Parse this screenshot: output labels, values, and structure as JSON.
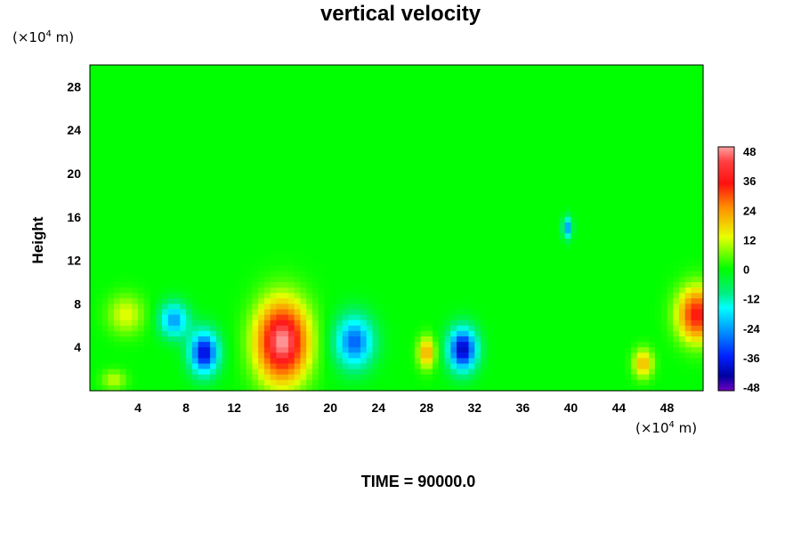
{
  "chart_data": {
    "type": "heatmap",
    "title": "vertical velocity",
    "ylabel": "Height",
    "xunit": {
      "prefix": "(×10",
      "exp": "4",
      "suffix": " m)"
    },
    "yunit": {
      "prefix": "(×10",
      "exp": "4",
      "suffix": " m)"
    },
    "xlim": [
      0,
      51
    ],
    "ylim": [
      0,
      30
    ],
    "xticks": [
      4,
      8,
      12,
      16,
      20,
      24,
      28,
      32,
      36,
      40,
      44,
      48
    ],
    "yticks": [
      4,
      8,
      12,
      16,
      20,
      24,
      28
    ],
    "colorbar": {
      "range": [
        -48,
        48
      ],
      "ticks": [
        48,
        36,
        24,
        12,
        0,
        -12,
        -24,
        -36,
        -48
      ]
    },
    "features": [
      {
        "x": 16,
        "y": 4.5,
        "value": 48,
        "sx": 2.1,
        "sy": 3.6
      },
      {
        "x": 50.5,
        "y": 7,
        "value": 36,
        "sx": 1.6,
        "sy": 2.4
      },
      {
        "x": 9.5,
        "y": 3.5,
        "value": -36,
        "sx": 1.2,
        "sy": 2.0
      },
      {
        "x": 7,
        "y": 6.5,
        "value": -24,
        "sx": 1.2,
        "sy": 1.6
      },
      {
        "x": 22,
        "y": 4.5,
        "value": -28,
        "sx": 1.6,
        "sy": 2.4
      },
      {
        "x": 31,
        "y": 3.8,
        "value": -38,
        "sx": 1.2,
        "sy": 2.0
      },
      {
        "x": 39.7,
        "y": 15,
        "value": -24,
        "sx": 0.4,
        "sy": 1.0
      },
      {
        "x": 28,
        "y": 3.5,
        "value": 22,
        "sx": 0.7,
        "sy": 1.4
      },
      {
        "x": 3,
        "y": 7,
        "value": 12,
        "sx": 1.5,
        "sy": 1.8
      },
      {
        "x": 46,
        "y": 2.5,
        "value": 20,
        "sx": 0.8,
        "sy": 1.3
      },
      {
        "x": 2,
        "y": 1,
        "value": 10,
        "sx": 1.0,
        "sy": 0.9
      }
    ]
  },
  "footer": {
    "time_label": "TIME = 90000.0"
  }
}
